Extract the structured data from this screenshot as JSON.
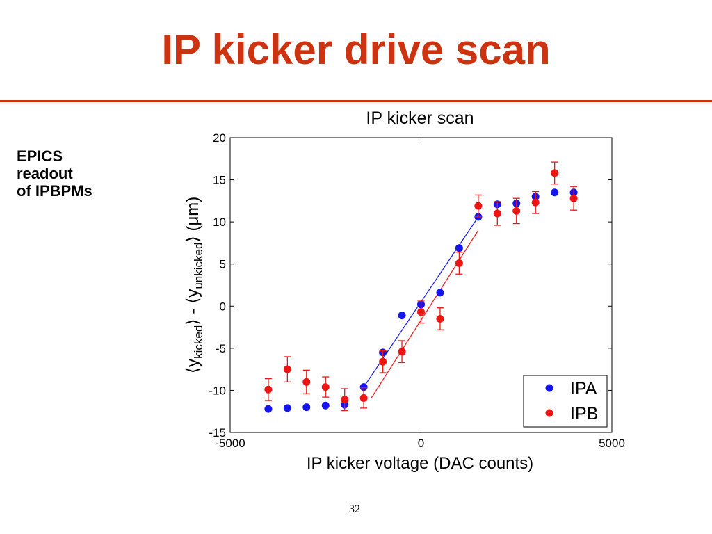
{
  "slide": {
    "title": "IP kicker drive scan",
    "side_note": [
      "EPICS",
      "readout",
      "of IPBPMs"
    ],
    "page_number": "32",
    "accent_color": "#cc3311"
  },
  "chart_data": {
    "type": "scatter",
    "title": "IP kicker scan",
    "xlabel": "IP kicker voltage (DAC counts)",
    "ylabel": {
      "open": "⟨y",
      "sub1": "kicked",
      "mid": "⟩ - ⟨y",
      "sub2": "unkicked",
      "close": "⟩ (μm)"
    },
    "xlim": [
      -5000,
      5000
    ],
    "ylim": [
      -15,
      20
    ],
    "xticks": [
      -5000,
      0,
      5000
    ],
    "xtick_labels": [
      "-5000",
      "0",
      "5000"
    ],
    "yticks": [
      -15,
      -10,
      -5,
      0,
      5,
      10,
      15,
      20
    ],
    "ytick_labels": [
      "-15",
      "-10",
      "-5",
      "0",
      "5",
      "10",
      "15",
      "20"
    ],
    "grid": false,
    "legend_position": "bottom-right",
    "series": [
      {
        "name": "IPA",
        "color": "#1414ee",
        "x": [
          -4000,
          -3500,
          -3000,
          -2500,
          -2000,
          -1500,
          -1000,
          -500,
          0,
          500,
          1000,
          1500,
          2000,
          2500,
          3000,
          3500,
          4000
        ],
        "y": [
          -12.2,
          -12.1,
          -12.0,
          -11.8,
          -11.7,
          -9.6,
          -5.5,
          -1.1,
          0.2,
          1.6,
          6.9,
          10.6,
          12.1,
          12.2,
          13.0,
          13.5,
          13.5
        ],
        "fit": {
          "x": [
            -1500,
            1500
          ],
          "y": [
            -9.6,
            10.6
          ]
        }
      },
      {
        "name": "IPB",
        "color": "#ee1414",
        "x": [
          -4000,
          -3500,
          -3000,
          -2500,
          -2000,
          -1500,
          -1000,
          -500,
          0,
          500,
          1000,
          1500,
          2000,
          2500,
          3000,
          3500,
          4000
        ],
        "y": [
          -9.9,
          -7.5,
          -9.0,
          -9.6,
          -11.1,
          -10.9,
          -6.6,
          -5.4,
          -0.7,
          -1.5,
          5.1,
          11.9,
          11.0,
          11.3,
          12.3,
          15.8,
          12.8
        ],
        "err": [
          1.3,
          1.5,
          1.4,
          1.2,
          1.3,
          1.2,
          1.3,
          1.3,
          1.3,
          1.3,
          1.3,
          1.3,
          1.4,
          1.5,
          1.3,
          1.3,
          1.4
        ],
        "fit": {
          "x": [
            -1300,
            1500
          ],
          "y": [
            -10.9,
            9.0
          ]
        }
      }
    ]
  }
}
